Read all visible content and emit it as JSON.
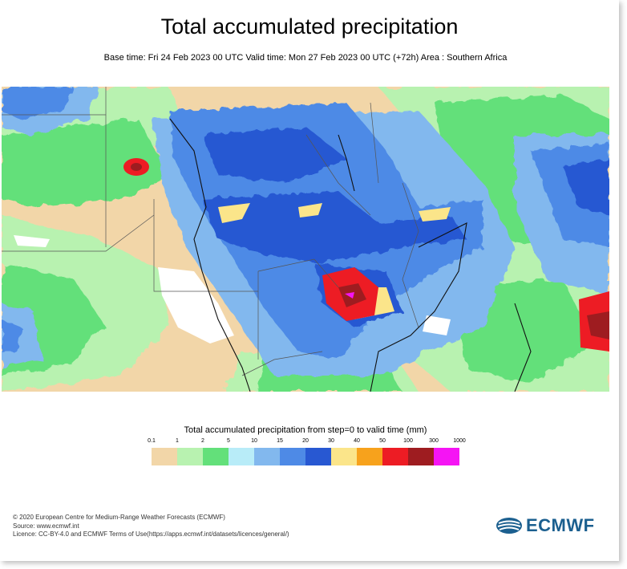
{
  "header": {
    "title": "Total accumulated precipitation",
    "subtitle": "Base time: Fri 24 Feb 2023 00 UTC Valid time: Mon 27 Feb 2023 00 UTC (+72h) Area : Southern Africa"
  },
  "legend": {
    "title": "Total accumulated precipitation from step=0 to valid time (mm)",
    "ticks": [
      "0.1",
      "1",
      "2",
      "5",
      "10",
      "15",
      "20",
      "30",
      "40",
      "50",
      "100",
      "300",
      "1000"
    ],
    "colors": [
      "#f2d6a8",
      "#b8f2b0",
      "#63e07a",
      "#b8ecf8",
      "#82b8ee",
      "#4e8ae6",
      "#2858d2",
      "#fbe58a",
      "#f7a21c",
      "#ed1c24",
      "#9e1c20",
      "#f514f4"
    ]
  },
  "map": {
    "background_land": "#f2d6a8",
    "ocean_color": "#f2d6a8"
  },
  "footer": {
    "line1": "© 2020 European Centre for Medium-Range Weather Forecasts (ECMWF)",
    "line2": "Source: www.ecmwf.int",
    "line3": "Licence: CC-BY-4.0 and ECMWF Terms of Use(https://apps.ecmwf.int/datasets/licences/general/)"
  },
  "logo": {
    "text": "ECMWF",
    "icon": "ecmwf-logo-icon",
    "color": "#1b5f8f"
  }
}
